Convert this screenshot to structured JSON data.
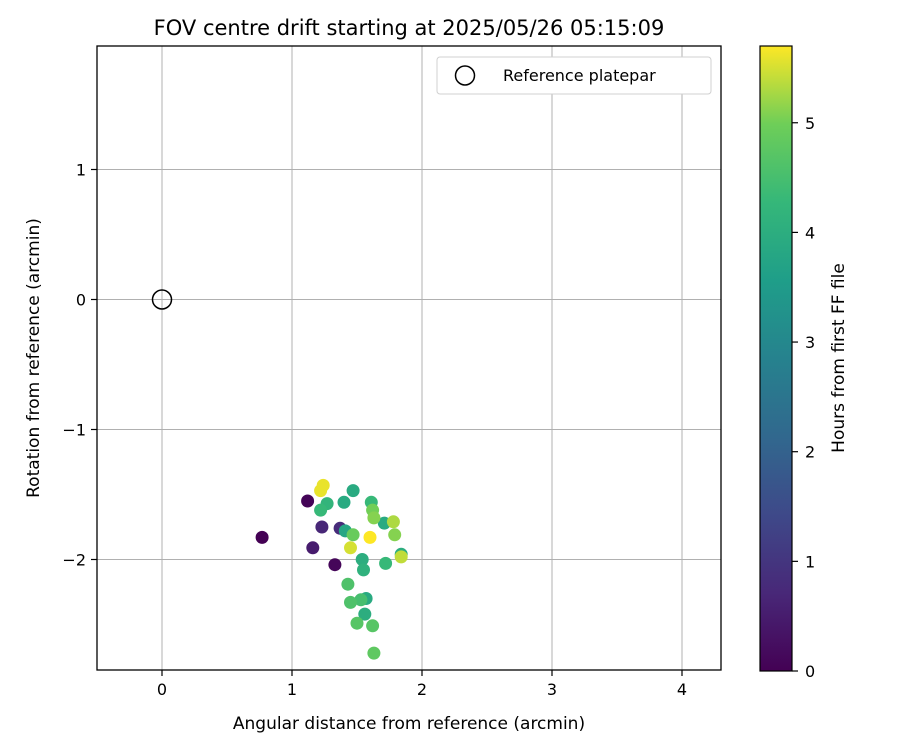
{
  "chart_data": {
    "type": "scatter",
    "title": "FOV centre drift starting at 2025/05/26 05:15:09",
    "xlabel": "Angular distance from reference (arcmin)",
    "ylabel": "Rotation from reference (arcmin)",
    "xlim": [
      -0.5,
      4.3
    ],
    "ylim": [
      -2.85,
      1.95
    ],
    "xticks": [
      0,
      1,
      2,
      3,
      4
    ],
    "yticks": [
      -2,
      -1,
      0,
      1
    ],
    "grid": true,
    "legend": {
      "placement": "upper right",
      "entries": [
        "Reference platepar"
      ]
    },
    "colorbar": {
      "label": "Hours from first FF file",
      "colormap": "viridis",
      "range": [
        0,
        5.7
      ],
      "ticks": [
        0,
        1,
        2,
        3,
        4,
        5
      ]
    },
    "reference_point": {
      "x": 0,
      "y": 0,
      "label": "Reference platepar"
    },
    "points": [
      {
        "x": 0.77,
        "y": -1.83,
        "hours": 0.0
      },
      {
        "x": 1.12,
        "y": -1.55,
        "hours": 0.05
      },
      {
        "x": 1.33,
        "y": -2.04,
        "hours": 0.1
      },
      {
        "x": 1.16,
        "y": -1.91,
        "hours": 0.5
      },
      {
        "x": 1.23,
        "y": -1.75,
        "hours": 0.7
      },
      {
        "x": 1.37,
        "y": -1.76,
        "hours": 0.8
      },
      {
        "x": 1.41,
        "y": -1.78,
        "hours": 3.8
      },
      {
        "x": 1.4,
        "y": -1.56,
        "hours": 3.9
      },
      {
        "x": 1.47,
        "y": -1.47,
        "hours": 3.9
      },
      {
        "x": 1.27,
        "y": -1.57,
        "hours": 4.2
      },
      {
        "x": 1.22,
        "y": -1.62,
        "hours": 4.3
      },
      {
        "x": 1.61,
        "y": -1.56,
        "hours": 4.3
      },
      {
        "x": 1.71,
        "y": -1.72,
        "hours": 3.9
      },
      {
        "x": 1.84,
        "y": -1.96,
        "hours": 4.0
      },
      {
        "x": 1.54,
        "y": -2.0,
        "hours": 4.0
      },
      {
        "x": 1.55,
        "y": -2.08,
        "hours": 4.1
      },
      {
        "x": 1.72,
        "y": -2.03,
        "hours": 4.3
      },
      {
        "x": 1.57,
        "y": -2.3,
        "hours": 3.9
      },
      {
        "x": 1.56,
        "y": -2.42,
        "hours": 4.0
      },
      {
        "x": 1.53,
        "y": -2.31,
        "hours": 4.5
      },
      {
        "x": 1.43,
        "y": -2.19,
        "hours": 4.6
      },
      {
        "x": 1.45,
        "y": -2.33,
        "hours": 4.6
      },
      {
        "x": 1.5,
        "y": -2.49,
        "hours": 4.7
      },
      {
        "x": 1.62,
        "y": -2.51,
        "hours": 4.7
      },
      {
        "x": 1.63,
        "y": -2.72,
        "hours": 4.8
      },
      {
        "x": 1.47,
        "y": -1.81,
        "hours": 4.9
      },
      {
        "x": 1.62,
        "y": -1.62,
        "hours": 5.0
      },
      {
        "x": 1.63,
        "y": -1.68,
        "hours": 5.1
      },
      {
        "x": 1.79,
        "y": -1.81,
        "hours": 5.1
      },
      {
        "x": 1.78,
        "y": -1.71,
        "hours": 5.3
      },
      {
        "x": 1.84,
        "y": -1.98,
        "hours": 5.4
      },
      {
        "x": 1.45,
        "y": -1.91,
        "hours": 5.5
      },
      {
        "x": 1.22,
        "y": -1.47,
        "hours": 5.6
      },
      {
        "x": 1.24,
        "y": -1.43,
        "hours": 5.6
      },
      {
        "x": 1.6,
        "y": -1.83,
        "hours": 5.7
      }
    ]
  }
}
